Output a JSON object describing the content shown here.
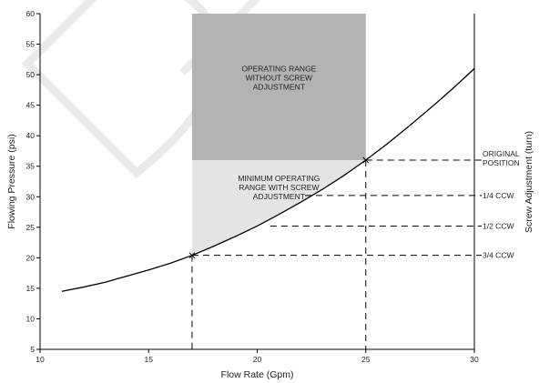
{
  "chart_data": {
    "type": "line",
    "xlabel": "Flow Rate (Gpm)",
    "ylabel": "Flowing Pressure (psi)",
    "y2label": "Screw Adjustment (turn)",
    "xlim": [
      10,
      30
    ],
    "ylim": [
      5,
      60
    ],
    "xticks": [
      10,
      15,
      20,
      25,
      30
    ],
    "yticks": [
      5,
      10,
      15,
      20,
      25,
      30,
      35,
      40,
      45,
      50,
      55,
      60
    ],
    "grid": false,
    "series": [
      {
        "x": [
          11,
          12,
          13,
          14,
          15,
          16,
          17,
          18,
          19,
          20,
          21,
          22,
          23,
          24,
          25,
          26,
          27,
          28,
          29,
          30
        ],
        "y": [
          14.5,
          15.2,
          16.0,
          17.0,
          18.0,
          19.1,
          20.4,
          21.9,
          23.5,
          25.2,
          27.1,
          29.1,
          31.2,
          33.5,
          36.0,
          38.7,
          41.6,
          44.6,
          47.7,
          51.0
        ]
      }
    ],
    "markers": [
      {
        "x": 17,
        "y": 20.4
      },
      {
        "x": 25,
        "y": 36.0
      }
    ],
    "regions": [
      {
        "label": [
          "OPERATING RANGE",
          "WITHOUT SCREW",
          "ADJUSTMENT"
        ],
        "x": [
          17,
          25
        ],
        "y": [
          36,
          60
        ],
        "color": "#b3b3b5"
      },
      {
        "label": [
          "MINIMUM OPERATING",
          "RANGE WITH SCREW",
          "ADJUSTMENT"
        ],
        "x": [
          17,
          25
        ],
        "color": "#e4e4e6"
      }
    ],
    "screw_adjustments": [
      {
        "label": [
          "ORIGINAL",
          "POSITION"
        ],
        "y": 36.0,
        "x_start": 25
      },
      {
        "label": [
          "1/4 CCW"
        ],
        "y": 30.2,
        "x_start": 22.2
      },
      {
        "label": [
          "1/2 CCW"
        ],
        "y": 25.2,
        "x_start": 20.6
      },
      {
        "label": [
          "3/4 CCW"
        ],
        "y": 20.4,
        "x_start": 17
      }
    ],
    "colors": {
      "curve": "#000000",
      "dashes": "#000000"
    }
  }
}
